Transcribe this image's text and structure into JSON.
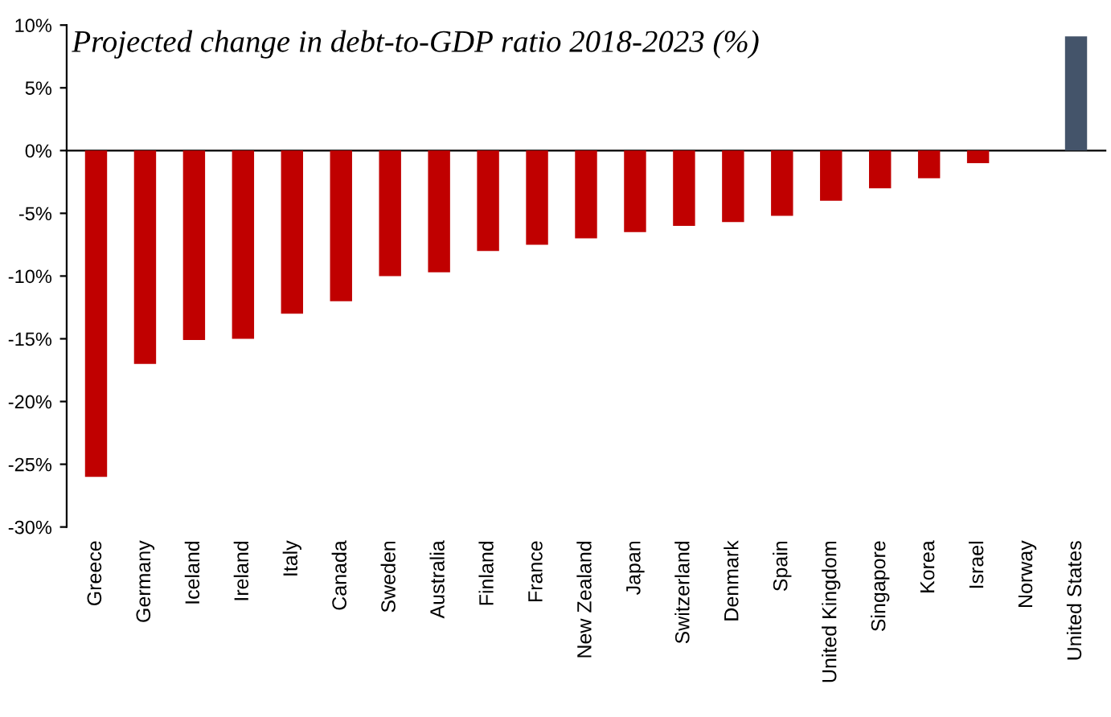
{
  "chart_data": {
    "type": "bar",
    "title": "Projected change in debt-to-GDP ratio 2018-2023 (%)",
    "categories": [
      "Greece",
      "Germany",
      "Iceland",
      "Ireland",
      "Italy",
      "Canada",
      "Sweden",
      "Australia",
      "Finland",
      "France",
      "New Zealand",
      "Japan",
      "Switzerland",
      "Denmark",
      "Spain",
      "United Kingdom",
      "Singapore",
      "Korea",
      "Israel",
      "Norway",
      "United States"
    ],
    "values": [
      -26,
      -17,
      -15.1,
      -15,
      -13,
      -12,
      -10,
      -9.7,
      -8,
      -7.5,
      -7,
      -6.5,
      -6,
      -5.7,
      -5.2,
      -4,
      -3,
      -2.2,
      -1,
      0,
      9.1
    ],
    "colors": [
      "#c00000",
      "#c00000",
      "#c00000",
      "#c00000",
      "#c00000",
      "#c00000",
      "#c00000",
      "#c00000",
      "#c00000",
      "#c00000",
      "#c00000",
      "#c00000",
      "#c00000",
      "#c00000",
      "#c00000",
      "#c00000",
      "#c00000",
      "#c00000",
      "#c00000",
      "#c00000",
      "#44546a"
    ],
    "ylim": [
      -30,
      10
    ],
    "yticks": [
      {
        "value": -30,
        "label": "-30%"
      },
      {
        "value": -25,
        "label": "-25%"
      },
      {
        "value": -20,
        "label": "-20%"
      },
      {
        "value": -15,
        "label": "-15%"
      },
      {
        "value": -10,
        "label": "-10%"
      },
      {
        "value": -5,
        "label": "-5%"
      },
      {
        "value": 0,
        "label": "0%"
      },
      {
        "value": 5,
        "label": "5%"
      },
      {
        "value": 10,
        "label": "10%"
      }
    ],
    "legend": false
  }
}
